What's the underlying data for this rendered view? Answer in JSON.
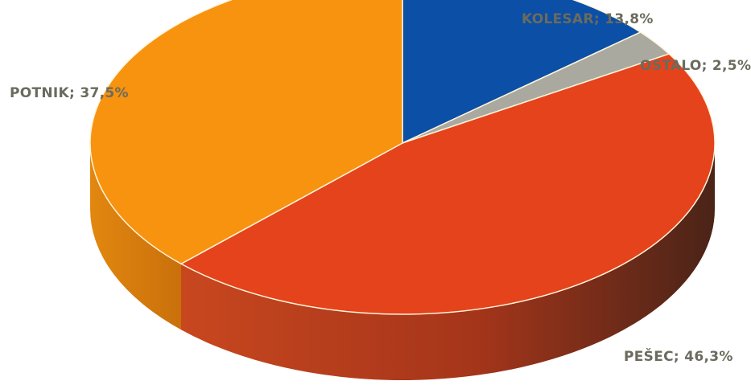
{
  "chart_data": {
    "type": "pie",
    "style": "3d",
    "start_angle_deg": -90,
    "direction": "clockwise",
    "slices": [
      {
        "label": "KOLESAR; 13,8%",
        "name": "KOLESAR",
        "value": 13.8,
        "color": "#0b4fa6",
        "side_color": "#0a3f85"
      },
      {
        "label": "OSTALO; 2,5%",
        "name": "OSTALO",
        "value": 2.5,
        "color": "#a9a9a0",
        "side_color": "#7e7e76"
      },
      {
        "label": "PEŠEC; 46,3%",
        "name": "PEŠEC",
        "value": 46.3,
        "color": "#e5431c",
        "side_color": "#7a2a1c"
      },
      {
        "label": "POTNIK; 37,5%",
        "name": "POTNIK",
        "value": 37.5,
        "color": "#f7930e",
        "side_color": "#d27a0d"
      }
    ]
  }
}
